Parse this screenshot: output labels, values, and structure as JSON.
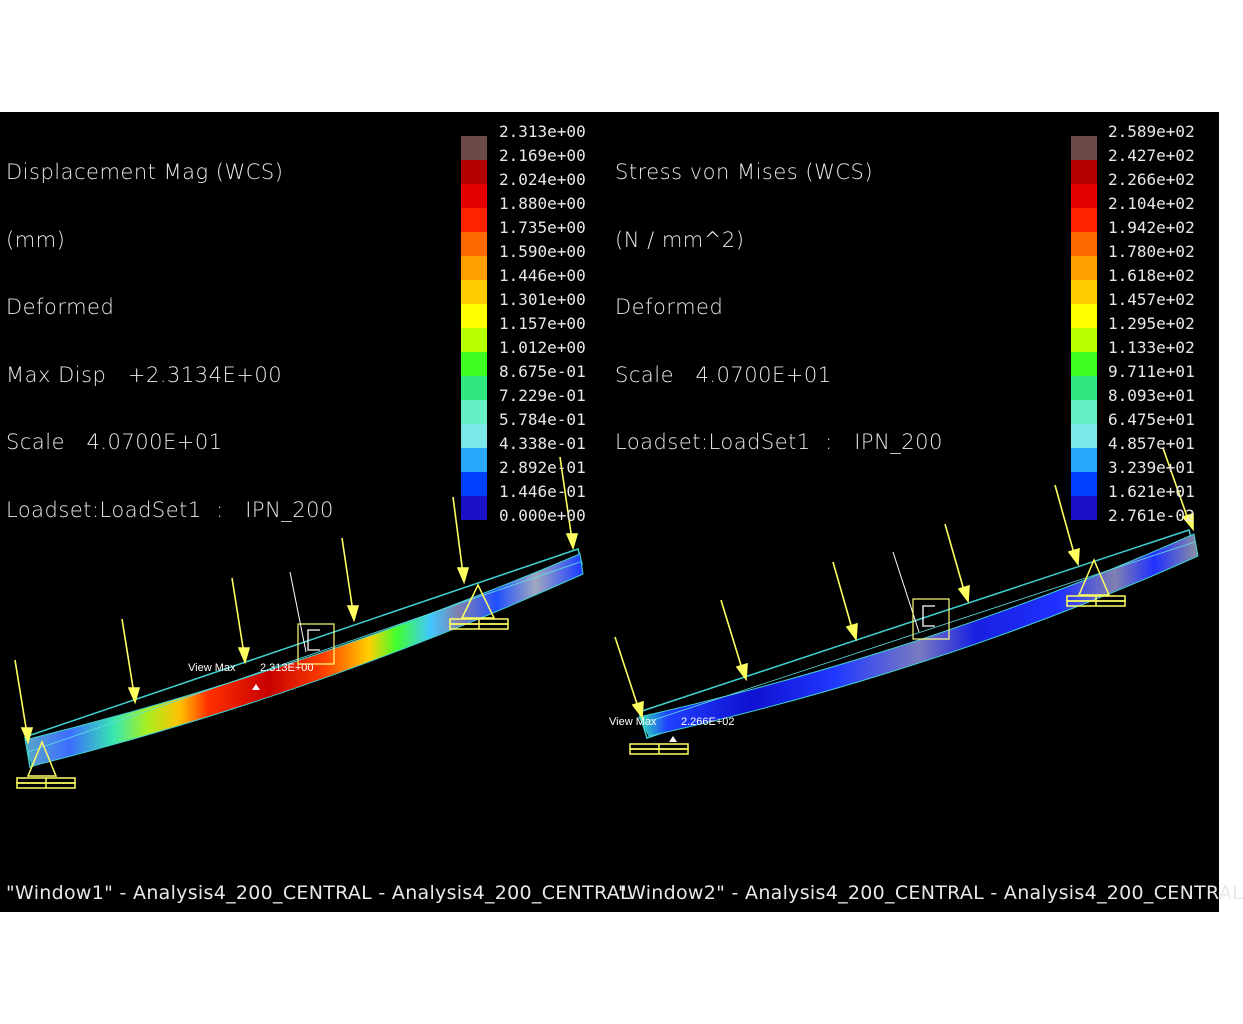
{
  "windows": [
    {
      "name": "Window1",
      "header": [
        "Displacement Mag (WCS)",
        "(mm)",
        "Deformed",
        "Max Disp   +2.3134E+00",
        "Scale   4.0700E+01",
        "Loadset:LoadSet1  :   IPN_200"
      ],
      "legend": {
        "values": [
          "2.313e+00",
          "2.169e+00",
          "2.024e+00",
          "1.880e+00",
          "1.735e+00",
          "1.590e+00",
          "1.446e+00",
          "1.301e+00",
          "1.157e+00",
          "1.012e+00",
          "8.675e-01",
          "7.229e-01",
          "5.784e-01",
          "4.338e-01",
          "2.892e-01",
          "1.446e-01",
          "0.000e+00"
        ],
        "colors": [
          "#6b4a48",
          "#b30000",
          "#e50000",
          "#ff2200",
          "#ff6a00",
          "#ffa000",
          "#ffcc00",
          "#ffff00",
          "#b8ff00",
          "#3cff20",
          "#30e880",
          "#66f0c8",
          "#7ae8e8",
          "#2aa8ff",
          "#0040ff",
          "#1a10c8",
          "#d0d0d0"
        ]
      },
      "view_max_label": "View Max",
      "view_max_value": "2.313E+00",
      "title": "\"Window1\" - Analysis4_200_CENTRAL - Analysis4_200_CENTRAL"
    },
    {
      "name": "Window2",
      "header": [
        "Stress von Mises (WCS)",
        "(N / mm^2)",
        "Deformed",
        "Scale   4.0700E+01",
        "Loadset:LoadSet1  :   IPN_200"
      ],
      "legend": {
        "values": [
          "2.589e+02",
          "2.427e+02",
          "2.266e+02",
          "2.104e+02",
          "1.942e+02",
          "1.780e+02",
          "1.618e+02",
          "1.457e+02",
          "1.295e+02",
          "1.133e+02",
          "9.711e+01",
          "8.093e+01",
          "6.475e+01",
          "4.857e+01",
          "3.239e+01",
          "1.621e+01",
          "2.761e-02"
        ],
        "colors": [
          "#6b4a48",
          "#b30000",
          "#e50000",
          "#ff2200",
          "#ff6a00",
          "#ffa000",
          "#ffcc00",
          "#ffff00",
          "#b8ff00",
          "#3cff20",
          "#30e880",
          "#66f0c8",
          "#7ae8e8",
          "#2aa8ff",
          "#0040ff",
          "#1a10c8",
          "#d0d0d0"
        ]
      },
      "view_max_label": "View Max",
      "view_max_value": "2.266E+02",
      "title": "\"Window2\" - Analysis4_200_CENTRAL - Analysis4_200_CENTRAL"
    }
  ]
}
